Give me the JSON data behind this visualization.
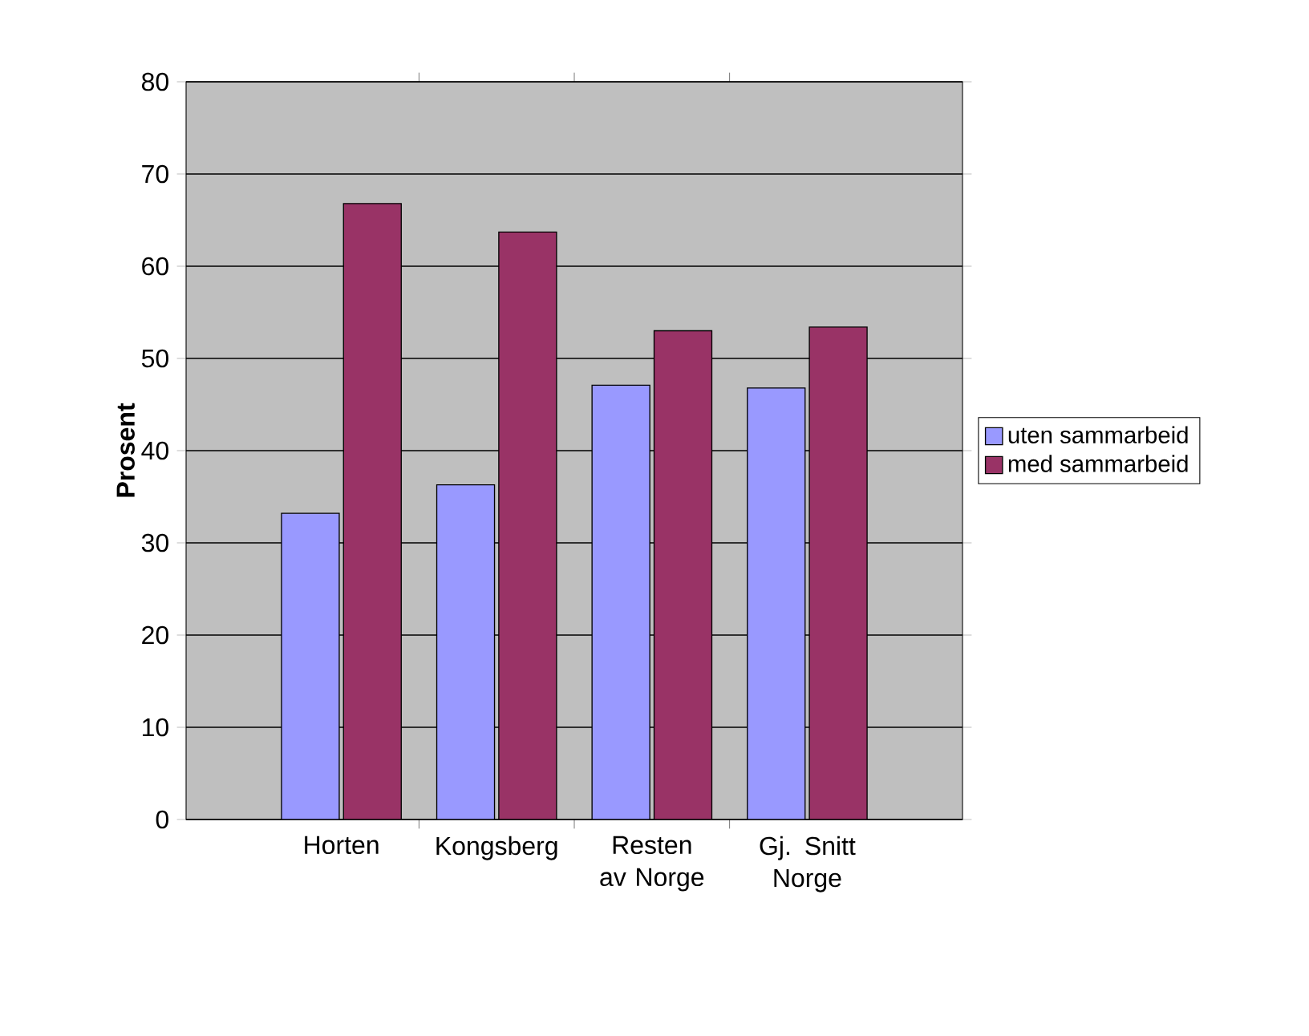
{
  "chart_data": {
    "type": "bar",
    "ylabel": "Prosent",
    "categories": [
      "Horten",
      "Kongsberg",
      "Resten av Norge",
      "Gj. Snitt Norge"
    ],
    "series": [
      {
        "name": "uten sammarbeid",
        "color": "#9999ff",
        "values": [
          33.2,
          36.3,
          47.1,
          46.8
        ]
      },
      {
        "name": "med sammarbeid",
        "color": "#993366",
        "values": [
          66.8,
          63.7,
          53.0,
          53.4
        ]
      }
    ],
    "ylim": [
      0,
      80
    ],
    "yticks": [
      0,
      10,
      20,
      30,
      40,
      50,
      60,
      70,
      80
    ],
    "grid": "y",
    "legend": "right"
  }
}
